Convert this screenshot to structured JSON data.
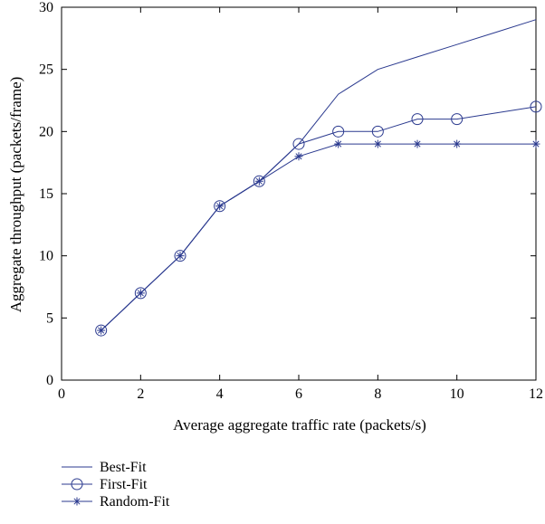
{
  "chart_data": {
    "type": "line",
    "title": "",
    "xlabel": "Average aggregate traffic rate (packets/s)",
    "ylabel": "Aggregate throughput (packets/frame)",
    "xlim": [
      0,
      12
    ],
    "ylim": [
      0,
      30
    ],
    "xticks": [
      0,
      2,
      4,
      6,
      8,
      10,
      12
    ],
    "yticks": [
      0,
      5,
      10,
      15,
      20,
      25,
      30
    ],
    "grid": false,
    "legend_position": "below-left",
    "line_color": "#2b3a8f",
    "series": [
      {
        "name": "Best-Fit",
        "marker": "none",
        "x": [
          1,
          2,
          3,
          4,
          5,
          6,
          7,
          8,
          9,
          10,
          11,
          12
        ],
        "values": [
          4,
          7,
          10,
          14,
          16,
          19,
          23,
          25,
          26,
          27,
          28,
          29
        ]
      },
      {
        "name": "First-Fit",
        "marker": "circle",
        "x": [
          1,
          2,
          3,
          4,
          5,
          6,
          7,
          8,
          9,
          10,
          12
        ],
        "values": [
          4,
          7,
          10,
          14,
          16,
          19,
          20,
          20,
          21,
          21,
          22
        ]
      },
      {
        "name": "Random-Fit",
        "marker": "star",
        "x": [
          1,
          2,
          3,
          4,
          5,
          6,
          7,
          8,
          9,
          10,
          12
        ],
        "values": [
          4,
          7,
          10,
          14,
          16,
          18,
          19,
          19,
          19,
          19,
          19
        ]
      }
    ]
  }
}
